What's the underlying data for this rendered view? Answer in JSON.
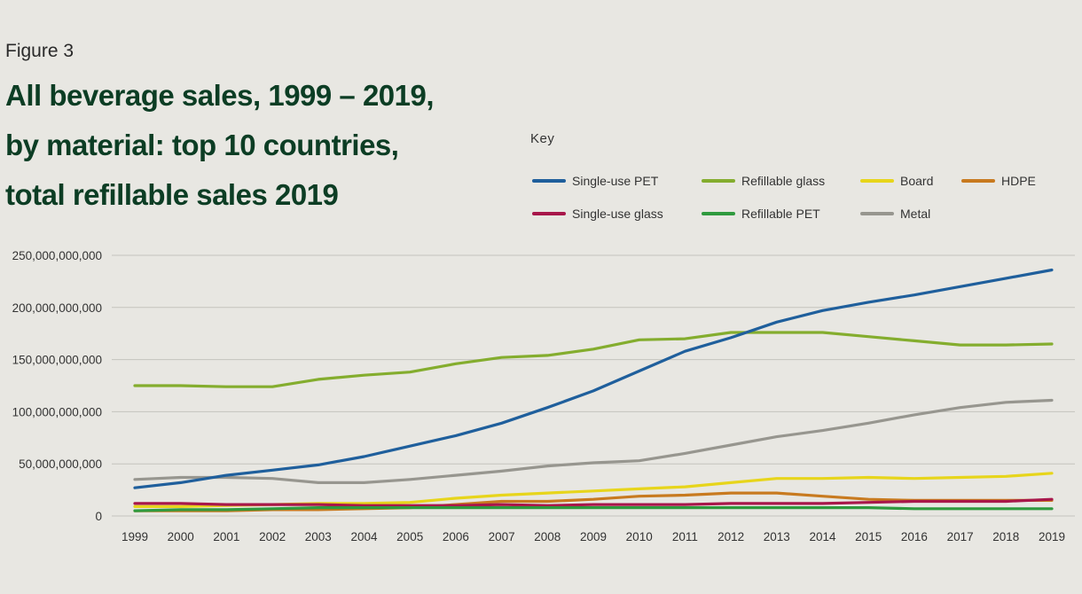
{
  "figure_label": "Figure 3",
  "title_lines": [
    "All beverage sales, 1999 – 2019,",
    "by material: top 10 countries,",
    "total refillable sales 2019"
  ],
  "legend_title": "Key",
  "chart_data": {
    "type": "line",
    "title": "All beverage sales, 1999 – 2019, by material: top 10 countries, total refillable sales 2019",
    "xlabel": "",
    "ylabel": "",
    "x": [
      "1999",
      "2000",
      "2001",
      "2002",
      "2003",
      "2004",
      "2005",
      "2006",
      "2007",
      "2008",
      "2009",
      "2010",
      "2011",
      "2012",
      "2013",
      "2014",
      "2015",
      "2016",
      "2017",
      "2018",
      "2019"
    ],
    "ylim": [
      0,
      250000000000
    ],
    "yticks": [
      0,
      50000000000,
      100000000000,
      150000000000,
      200000000000,
      250000000000
    ],
    "ytick_labels": [
      "0",
      "50,000,000,000",
      "100,000,000,000",
      "150,000,000,000",
      "200,000,000,000",
      "250,000,000,000"
    ],
    "grid": "horizontal",
    "legend_position": "top-right",
    "series": [
      {
        "name": "Single-use PET",
        "color": "#1f5f9c",
        "values": [
          27000000000,
          32000000000,
          39000000000,
          44000000000,
          49000000000,
          57000000000,
          67000000000,
          77000000000,
          89000000000,
          104000000000,
          120000000000,
          139000000000,
          158000000000,
          171000000000,
          186000000000,
          197000000000,
          205000000000,
          212000000000,
          220000000000,
          228000000000,
          236000000000
        ]
      },
      {
        "name": "Refillable glass",
        "color": "#84ad2e",
        "values": [
          125000000000,
          125000000000,
          124000000000,
          124000000000,
          131000000000,
          135000000000,
          138000000000,
          146000000000,
          152000000000,
          154000000000,
          160000000000,
          169000000000,
          170000000000,
          176000000000,
          176000000000,
          176000000000,
          172000000000,
          168000000000,
          164000000000,
          164000000000,
          165000000000
        ]
      },
      {
        "name": "Board",
        "color": "#e7d51b",
        "values": [
          9000000000,
          9000000000,
          10000000000,
          11000000000,
          12000000000,
          12000000000,
          13000000000,
          17000000000,
          20000000000,
          22000000000,
          24000000000,
          26000000000,
          28000000000,
          32000000000,
          36000000000,
          36000000000,
          37000000000,
          36000000000,
          37000000000,
          38000000000,
          41000000000
        ]
      },
      {
        "name": "HDPE",
        "color": "#c87a1f",
        "values": [
          5000000000,
          5000000000,
          5000000000,
          6000000000,
          6000000000,
          7000000000,
          8000000000,
          11000000000,
          14000000000,
          14000000000,
          16000000000,
          19000000000,
          20000000000,
          22000000000,
          22000000000,
          19000000000,
          16000000000,
          15000000000,
          15000000000,
          15000000000,
          15000000000
        ]
      },
      {
        "name": "Single-use glass",
        "color": "#a8174a",
        "values": [
          12000000000,
          12000000000,
          11000000000,
          11000000000,
          11000000000,
          10000000000,
          10000000000,
          10000000000,
          11000000000,
          10000000000,
          11000000000,
          11000000000,
          11000000000,
          12000000000,
          12000000000,
          12000000000,
          13000000000,
          14000000000,
          14000000000,
          14000000000,
          16000000000
        ]
      },
      {
        "name": "Refillable PET",
        "color": "#2f9a3e",
        "values": [
          5000000000,
          6000000000,
          6000000000,
          7000000000,
          8000000000,
          8000000000,
          8000000000,
          8000000000,
          8000000000,
          8000000000,
          8000000000,
          8000000000,
          8000000000,
          8000000000,
          8000000000,
          8000000000,
          8000000000,
          7000000000,
          7000000000,
          7000000000,
          7000000000
        ]
      },
      {
        "name": "Metal",
        "color": "#97968f",
        "values": [
          35000000000,
          37000000000,
          37000000000,
          36000000000,
          32000000000,
          32000000000,
          35000000000,
          39000000000,
          43000000000,
          48000000000,
          51000000000,
          53000000000,
          60000000000,
          68000000000,
          76000000000,
          82000000000,
          89000000000,
          97000000000,
          104000000000,
          109000000000,
          111000000000
        ]
      }
    ]
  }
}
